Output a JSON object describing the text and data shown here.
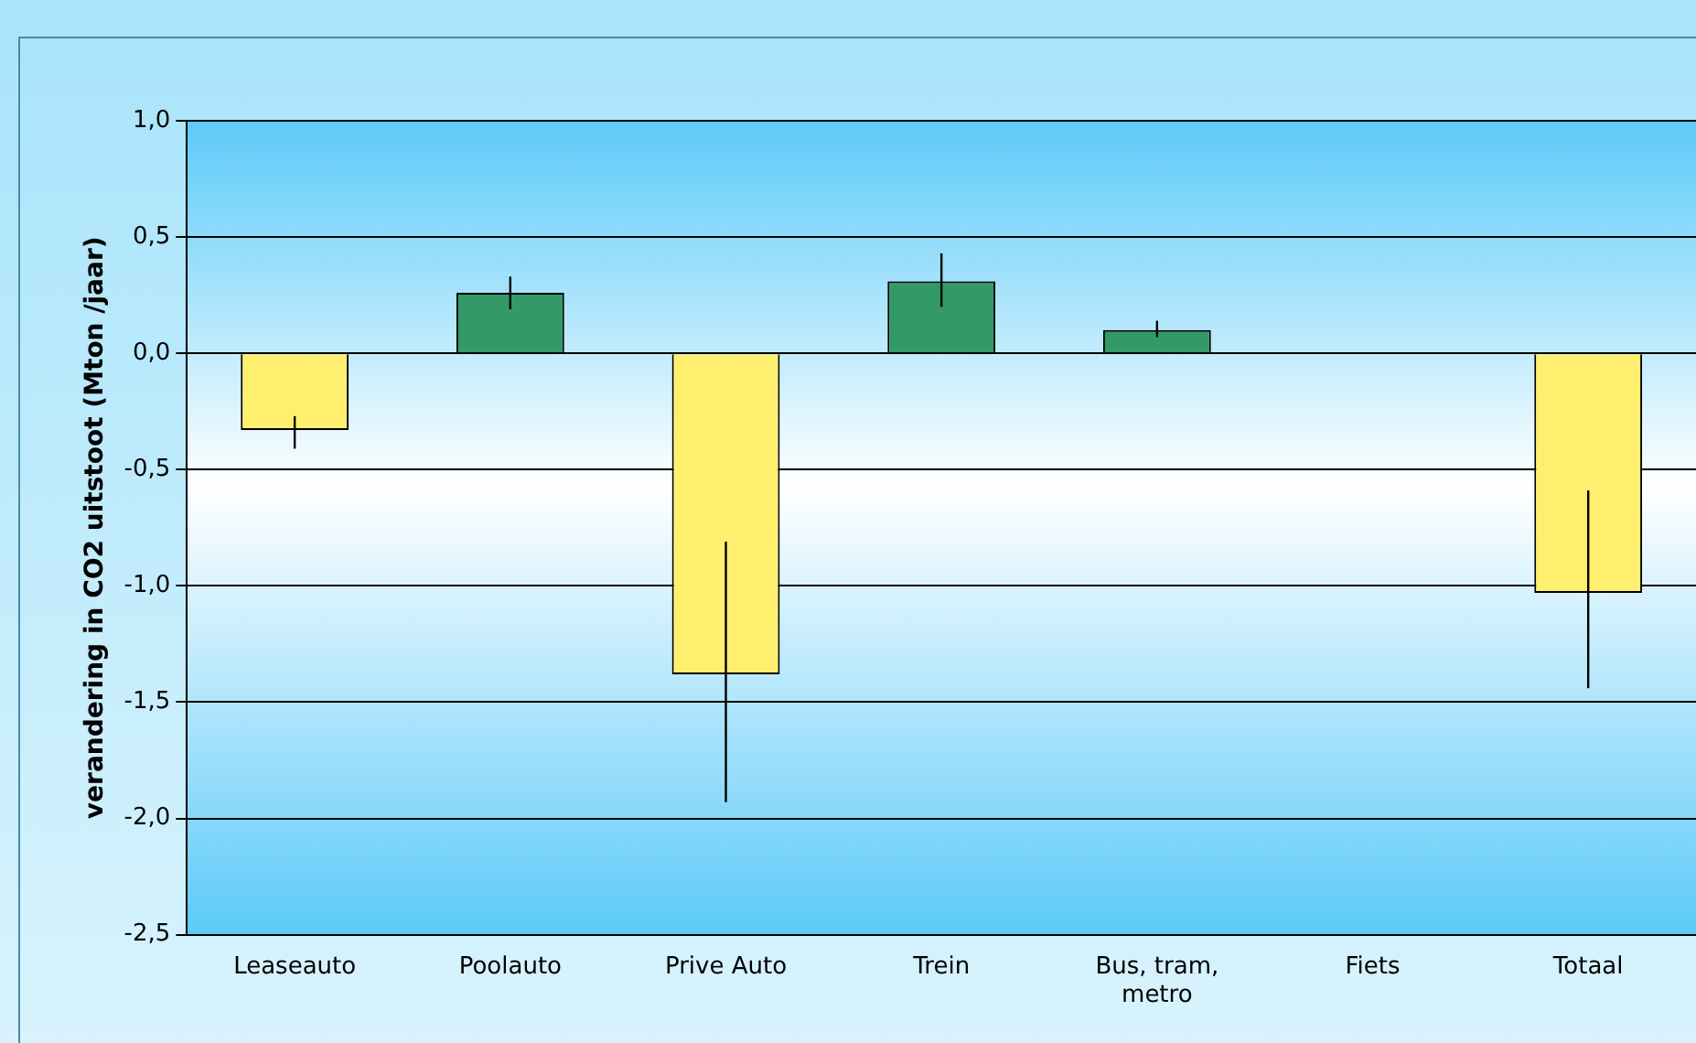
{
  "chart_data": {
    "type": "bar",
    "ylabel": "verandering in CO2 uitstoot (Mton /jaar)",
    "categories": [
      "Leaseauto",
      "Poolauto",
      "Prive Auto",
      "Trein",
      "Bus, tram, metro",
      "Fiets",
      "Totaal"
    ],
    "values": [
      -0.33,
      0.26,
      -1.38,
      0.31,
      0.1,
      0,
      -1.03
    ],
    "colors": [
      "#ffef6e",
      "#339966",
      "#ffef6e",
      "#339966",
      "#339966",
      "#339966",
      "#ffef6e"
    ],
    "errors": [
      [
        -0.41,
        -0.27
      ],
      [
        0.19,
        0.33
      ],
      [
        -1.93,
        -0.81
      ],
      [
        0.2,
        0.43
      ],
      [
        0.07,
        0.14
      ],
      null,
      [
        -1.44,
        -0.59
      ]
    ],
    "ylim": [
      -2.5,
      1.0
    ],
    "yticks": [
      {
        "value": -2.5,
        "label": "-2,5"
      },
      {
        "value": -2.0,
        "label": "-2,0"
      },
      {
        "value": -1.5,
        "label": "-1,5"
      },
      {
        "value": -1.0,
        "label": "-1,0"
      },
      {
        "value": -0.5,
        "label": "-0,5"
      },
      {
        "value": 0,
        "label": "0,0"
      },
      {
        "value": 0.5,
        "label": "0,5"
      },
      {
        "value": 1.0,
        "label": "1,0"
      }
    ],
    "grid": "y"
  }
}
